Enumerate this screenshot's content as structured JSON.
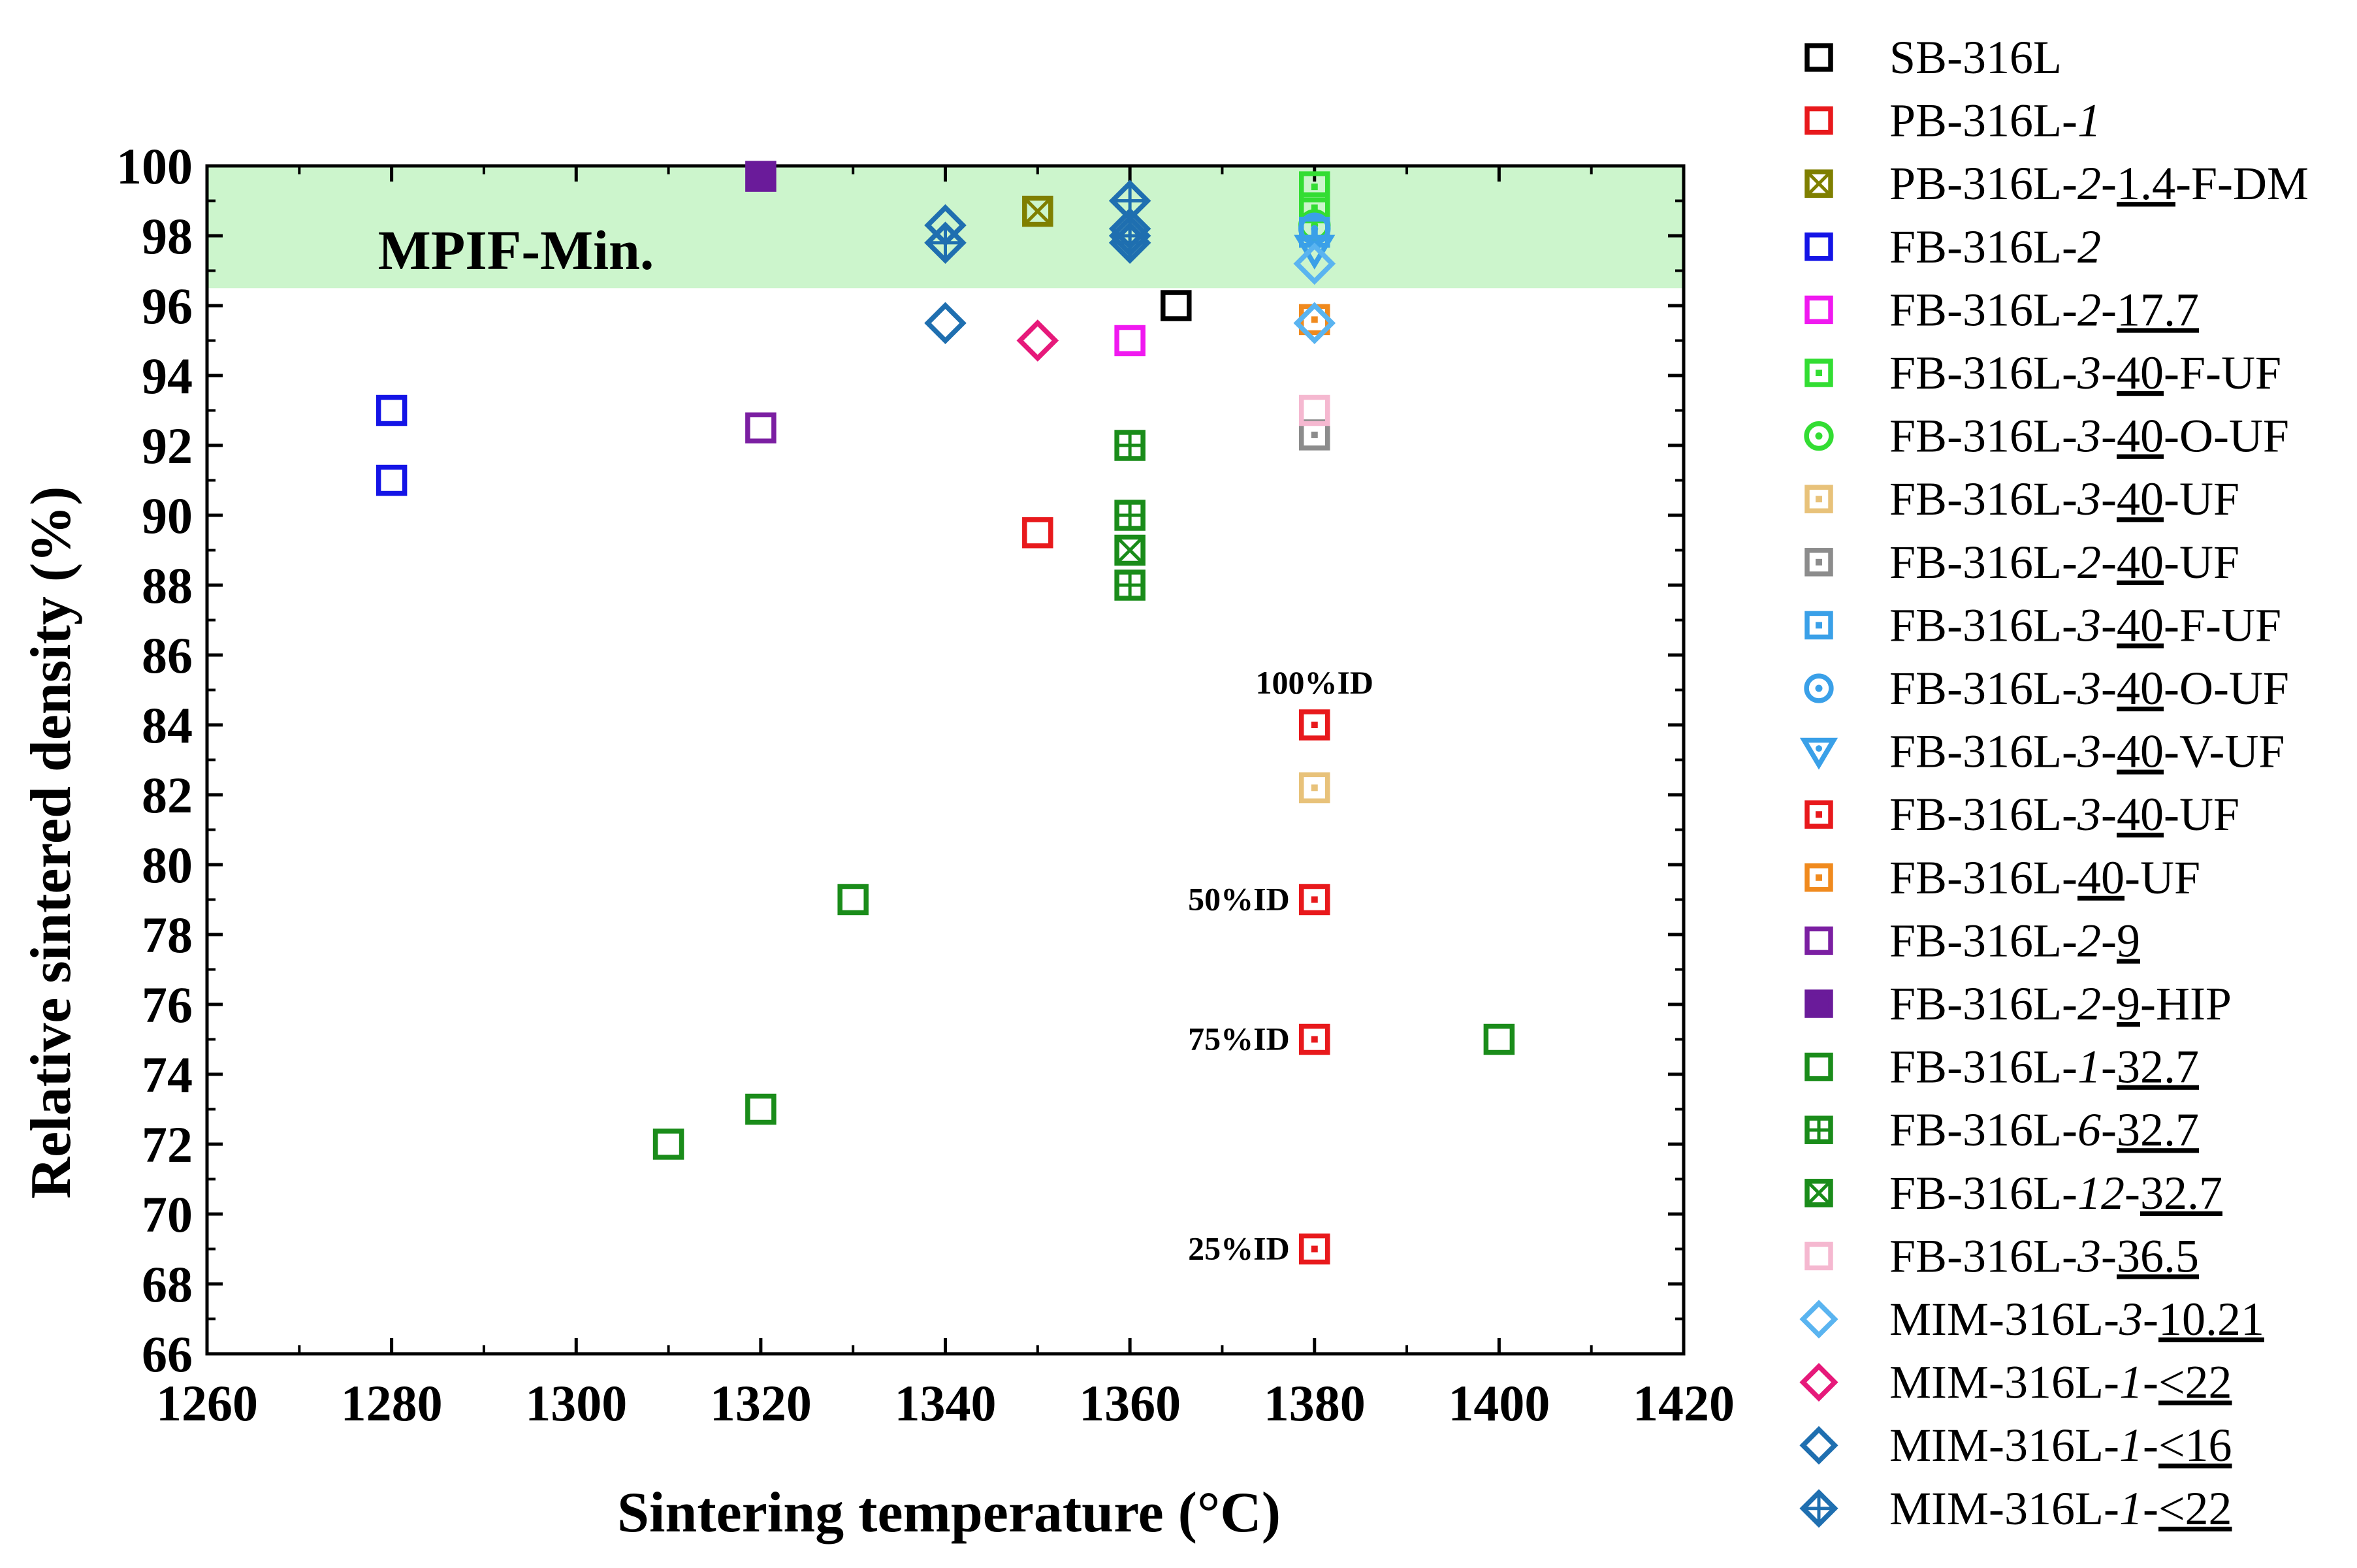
{
  "chart_data": {
    "type": "scatter",
    "title": "",
    "xlabel": "Sintering temperature (°C)",
    "ylabel": "Relative sintered density (%)",
    "xlim": [
      1260,
      1420
    ],
    "ylim": [
      66,
      100
    ],
    "xticks": [
      1260,
      1280,
      1300,
      1320,
      1340,
      1360,
      1380,
      1400,
      1420
    ],
    "yticks": [
      66,
      68,
      70,
      72,
      74,
      76,
      78,
      80,
      82,
      84,
      86,
      88,
      90,
      92,
      94,
      96,
      98,
      100
    ],
    "xtick_labels": [
      "1260",
      "1280",
      "1300",
      "1320",
      "1340",
      "1360",
      "1380",
      "1400",
      "1420"
    ],
    "ytick_labels": [
      "66",
      "68",
      "70",
      "72",
      "74",
      "76",
      "78",
      "80",
      "82",
      "84",
      "86",
      "88",
      "90",
      "92",
      "94",
      "96",
      "98",
      "100"
    ],
    "band": {
      "label": "MPIF-Min.",
      "from": 96.5,
      "to": 100,
      "color": "#ccf5cc"
    },
    "annotations": [
      {
        "text": "100%ID",
        "x": 1380,
        "y": 84
      },
      {
        "text": "50%ID",
        "x": 1380,
        "y": 79
      },
      {
        "text": "75%ID",
        "x": 1380,
        "y": 75
      },
      {
        "text": "25%ID",
        "x": 1380,
        "y": 69
      }
    ],
    "series": [
      {
        "name": "SB-316L",
        "marker": "square",
        "color": "#000000",
        "points": [
          [
            1365,
            96.0
          ]
        ]
      },
      {
        "name": "PB-316L-1",
        "marker": "square",
        "color": "#e8191c",
        "points": [
          [
            1350,
            89.5
          ]
        ]
      },
      {
        "name": "PB-316L-2-1.4-F-DM",
        "marker": "square-x",
        "color": "#7f7f00",
        "points": [
          [
            1350,
            98.7
          ]
        ]
      },
      {
        "name": "FB-316L-2",
        "marker": "square",
        "color": "#1414e6",
        "points": [
          [
            1280,
            93.0
          ],
          [
            1280,
            91.0
          ]
        ]
      },
      {
        "name": "FB-316L-2-17.7",
        "marker": "square",
        "color": "#f019f0",
        "points": [
          [
            1360,
            95.0
          ]
        ]
      },
      {
        "name": "FB-316L-3-40-F-UF",
        "marker": "square-dot",
        "color": "#33dd33",
        "points": [
          [
            1380,
            99.4
          ],
          [
            1380,
            98.8
          ]
        ]
      },
      {
        "name": "FB-316L-3-40-O-UF",
        "marker": "circle-dot",
        "color": "#33dd33",
        "points": [
          [
            1380,
            98.3
          ]
        ]
      },
      {
        "name": "FB-316L-3-40-UF",
        "marker": "square-dot",
        "color": "#e8c27a",
        "points": [
          [
            1380,
            82.2
          ]
        ]
      },
      {
        "name": "FB-316L-2-40-UF",
        "marker": "square-dot",
        "color": "#8c8c8c",
        "points": [
          [
            1380,
            92.3
          ]
        ]
      },
      {
        "name": "FB-316L-3-40-F-UF",
        "marker": "square-dot",
        "color": "#3aa0e8",
        "points": [
          [
            1380,
            98.1
          ]
        ]
      },
      {
        "name": "FB-316L-3-40-O-UF",
        "marker": "circle-dot",
        "color": "#3aa0e8",
        "points": [
          [
            1380,
            98.2
          ]
        ]
      },
      {
        "name": "FB-316L-3-40-V-UF",
        "marker": "triangle-down",
        "color": "#3aa0e8",
        "points": [
          [
            1380,
            97.6
          ]
        ]
      },
      {
        "name": "FB-316L-3-40-UF",
        "marker": "square-dot",
        "color": "#e8191c",
        "points": [
          [
            1380,
            84.0
          ],
          [
            1380,
            79.0
          ],
          [
            1380,
            75.0
          ],
          [
            1380,
            69.0
          ]
        ]
      },
      {
        "name": "FB-316L-40-UF",
        "marker": "square-dot",
        "color": "#f08a1e",
        "points": [
          [
            1380,
            95.6
          ]
        ]
      },
      {
        "name": "FB-316L-2-9",
        "marker": "square",
        "color": "#7b1fa2",
        "points": [
          [
            1320,
            92.5
          ]
        ]
      },
      {
        "name": "FB-316L-2-9-HIP",
        "marker": "square-filled",
        "color": "#6a1b9a",
        "points": [
          [
            1320,
            99.7
          ]
        ]
      },
      {
        "name": "FB-316L-1-32.7",
        "marker": "square",
        "color": "#1a8c1a",
        "points": [
          [
            1310,
            72.0
          ],
          [
            1320,
            73.0
          ],
          [
            1330,
            79.0
          ],
          [
            1400,
            75.0
          ]
        ]
      },
      {
        "name": "FB-316L-6-32.7",
        "marker": "square-plus",
        "color": "#1a8c1a",
        "points": [
          [
            1360,
            92.0
          ],
          [
            1360,
            90.0
          ],
          [
            1360,
            88.0
          ]
        ]
      },
      {
        "name": "FB-316L-12-32.7",
        "marker": "square-x",
        "color": "#1a8c1a",
        "points": [
          [
            1360,
            89.0
          ]
        ]
      },
      {
        "name": "FB-316L-3-36.5",
        "marker": "square",
        "color": "#f5b8d0",
        "points": [
          [
            1380,
            93.0
          ]
        ]
      },
      {
        "name": "MIM-316L-3-10.21",
        "marker": "diamond",
        "color": "#5ab4f0",
        "points": [
          [
            1380,
            97.2
          ],
          [
            1380,
            95.5
          ]
        ]
      },
      {
        "name": "MIM-316L-1-<22",
        "marker": "diamond",
        "color": "#e6197a",
        "points": [
          [
            1350,
            95.0
          ]
        ]
      },
      {
        "name": "MIM-316L-1-<16",
        "marker": "diamond",
        "color": "#1f6fb0",
        "points": [
          [
            1340,
            98.3
          ],
          [
            1340,
            95.5
          ],
          [
            1360,
            98.2
          ]
        ]
      },
      {
        "name": "MIM-316L-1-<22",
        "marker": "diamond-plus",
        "color": "#1f6fb0",
        "points": [
          [
            1340,
            97.8
          ],
          [
            1360,
            99.0
          ],
          [
            1360,
            98.0
          ],
          [
            1360,
            97.8
          ]
        ]
      }
    ],
    "legend": {
      "position": "right",
      "entries": [
        {
          "parts": [
            [
              "SB-316L",
              "n"
            ]
          ]
        },
        {
          "parts": [
            [
              "PB-316L-",
              "n"
            ],
            [
              "1",
              "i"
            ]
          ]
        },
        {
          "parts": [
            [
              "PB-316L-",
              "n"
            ],
            [
              "2",
              "i"
            ],
            [
              "-",
              "n"
            ],
            [
              "1.4",
              "u"
            ],
            [
              "-F-DM",
              "n"
            ]
          ]
        },
        {
          "parts": [
            [
              "FB-316L-",
              "n"
            ],
            [
              "2",
              "i"
            ]
          ]
        },
        {
          "parts": [
            [
              "FB-316L-",
              "n"
            ],
            [
              "2",
              "i"
            ],
            [
              "-",
              "n"
            ],
            [
              "17.7",
              "u"
            ]
          ]
        },
        {
          "parts": [
            [
              "FB-316L-",
              "n"
            ],
            [
              "3",
              "i"
            ],
            [
              "-",
              "n"
            ],
            [
              "40",
              "u"
            ],
            [
              "-F-UF",
              "n"
            ]
          ]
        },
        {
          "parts": [
            [
              "FB-316L-",
              "n"
            ],
            [
              "3",
              "i"
            ],
            [
              "-",
              "n"
            ],
            [
              "40",
              "u"
            ],
            [
              "-O-UF",
              "n"
            ]
          ]
        },
        {
          "parts": [
            [
              "FB-316L-",
              "n"
            ],
            [
              "3",
              "i"
            ],
            [
              "-",
              "n"
            ],
            [
              "40",
              "u"
            ],
            [
              "-UF",
              "n"
            ]
          ]
        },
        {
          "parts": [
            [
              "FB-316L-",
              "n"
            ],
            [
              "2",
              "i"
            ],
            [
              "-",
              "n"
            ],
            [
              "40",
              "u"
            ],
            [
              "-UF",
              "n"
            ]
          ]
        },
        {
          "parts": [
            [
              "FB-316L-",
              "n"
            ],
            [
              "3",
              "i"
            ],
            [
              "-",
              "n"
            ],
            [
              "40",
              "u"
            ],
            [
              "-F-UF",
              "n"
            ]
          ]
        },
        {
          "parts": [
            [
              "FB-316L-",
              "n"
            ],
            [
              "3",
              "i"
            ],
            [
              "-",
              "n"
            ],
            [
              "40",
              "u"
            ],
            [
              "-O-UF",
              "n"
            ]
          ]
        },
        {
          "parts": [
            [
              "FB-316L-",
              "n"
            ],
            [
              "3",
              "i"
            ],
            [
              "-",
              "n"
            ],
            [
              "40",
              "u"
            ],
            [
              "-V-UF",
              "n"
            ]
          ]
        },
        {
          "parts": [
            [
              "FB-316L-",
              "n"
            ],
            [
              "3",
              "i"
            ],
            [
              "-",
              "n"
            ],
            [
              "40",
              "u"
            ],
            [
              "-UF",
              "n"
            ]
          ]
        },
        {
          "parts": [
            [
              "FB-316L-",
              "n"
            ],
            [
              "40",
              "u"
            ],
            [
              "-UF",
              "n"
            ]
          ]
        },
        {
          "parts": [
            [
              "FB-316L-",
              "n"
            ],
            [
              "2",
              "i"
            ],
            [
              "-",
              "n"
            ],
            [
              "9",
              "u"
            ]
          ]
        },
        {
          "parts": [
            [
              "FB-316L-",
              "n"
            ],
            [
              "2",
              "i"
            ],
            [
              "-",
              "n"
            ],
            [
              "9",
              "u"
            ],
            [
              "-HIP",
              "n"
            ]
          ]
        },
        {
          "parts": [
            [
              "FB-316L-",
              "n"
            ],
            [
              "1",
              "i"
            ],
            [
              "-",
              "n"
            ],
            [
              "32.7",
              "u"
            ]
          ]
        },
        {
          "parts": [
            [
              "FB-316L-",
              "n"
            ],
            [
              "6",
              "i"
            ],
            [
              "-",
              "n"
            ],
            [
              "32.7",
              "u"
            ]
          ]
        },
        {
          "parts": [
            [
              "FB-316L-",
              "n"
            ],
            [
              "12",
              "i"
            ],
            [
              "-",
              "n"
            ],
            [
              "32.7",
              "u"
            ]
          ]
        },
        {
          "parts": [
            [
              "FB-316L-",
              "n"
            ],
            [
              "3",
              "i"
            ],
            [
              "-",
              "n"
            ],
            [
              "36.5",
              "u"
            ]
          ]
        },
        {
          "parts": [
            [
              "MIM-316L-",
              "n"
            ],
            [
              "3",
              "i"
            ],
            [
              "-",
              "n"
            ],
            [
              "10.21",
              "u"
            ]
          ]
        },
        {
          "parts": [
            [
              "MIM-316L-",
              "n"
            ],
            [
              "1",
              "i"
            ],
            [
              "-",
              "n"
            ],
            [
              "<22",
              "u"
            ]
          ]
        },
        {
          "parts": [
            [
              "MIM-316L-",
              "n"
            ],
            [
              "1",
              "i"
            ],
            [
              "-",
              "n"
            ],
            [
              "<16",
              "u"
            ]
          ]
        },
        {
          "parts": [
            [
              "MIM-316L-",
              "n"
            ],
            [
              "1",
              "i"
            ],
            [
              "-",
              "n"
            ],
            [
              "<22",
              "u"
            ]
          ]
        }
      ]
    }
  }
}
